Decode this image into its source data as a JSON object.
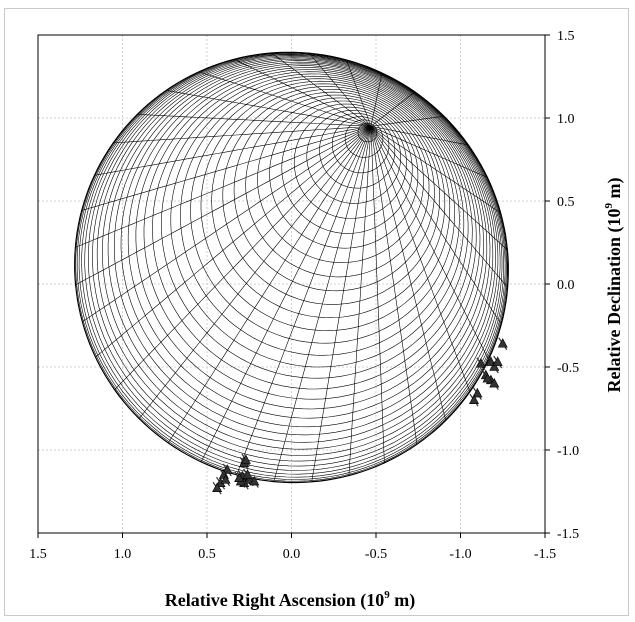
{
  "chart_data": {
    "type": "scatter",
    "title": "",
    "xlabel_parts": [
      "Relative Right Ascension (10",
      "9",
      " m)"
    ],
    "ylabel_parts": [
      "Relative Declination (10",
      "9",
      " m)"
    ],
    "xlim": [
      1.5,
      -1.5
    ],
    "ylim": [
      -1.5,
      1.5
    ],
    "x_ticks": [
      "1.5",
      "1.0",
      "0.5",
      "0.0",
      "-0.5",
      "-1.0",
      "-1.5"
    ],
    "y_ticks": [
      "1.5",
      "1.0",
      "0.5",
      "0.0",
      "-0.5",
      "-1.0",
      "-1.5"
    ],
    "x_tick_values": [
      1.5,
      1.0,
      0.5,
      0.0,
      -0.5,
      -1.0,
      -1.5
    ],
    "y_tick_values": [
      1.5,
      1.0,
      0.5,
      0.0,
      -0.5,
      -1.0,
      -1.5
    ],
    "grid": true,
    "legend": "none",
    "surface": {
      "description_free": true,
      "center": [
        0.0,
        0.1
      ],
      "semi_axes": [
        1.28,
        1.3
      ],
      "tilt_deg": -25,
      "pole": [
        -0.47,
        0.95
      ],
      "meridian_count": 36,
      "parallel_count": 36
    },
    "series": [
      {
        "marker": "triangle",
        "points": [
          {
            "x": 0.27,
            "y": -1.17
          },
          {
            "x": 0.25,
            "y": -1.18
          },
          {
            "x": 0.29,
            "y": -1.16
          },
          {
            "x": 0.26,
            "y": -1.15
          },
          {
            "x": 0.28,
            "y": -1.2
          },
          {
            "x": 0.3,
            "y": -1.19
          },
          {
            "x": 0.31,
            "y": -1.17
          },
          {
            "x": 0.28,
            "y": -1.08
          },
          {
            "x": 0.27,
            "y": -1.06
          },
          {
            "x": 0.22,
            "y": -1.19
          },
          {
            "x": 0.38,
            "y": -1.12
          },
          {
            "x": 0.4,
            "y": -1.15
          },
          {
            "x": 0.42,
            "y": -1.2
          },
          {
            "x": 0.44,
            "y": -1.23
          },
          {
            "x": 0.39,
            "y": -1.18
          },
          {
            "x": -1.12,
            "y": -0.48
          },
          {
            "x": -1.18,
            "y": -0.47
          },
          {
            "x": -1.2,
            "y": -0.5
          },
          {
            "x": -1.15,
            "y": -0.55
          },
          {
            "x": -1.18,
            "y": -0.58
          },
          {
            "x": -1.2,
            "y": -0.6
          },
          {
            "x": -1.16,
            "y": -0.57
          },
          {
            "x": -1.1,
            "y": -0.66
          },
          {
            "x": -1.08,
            "y": -0.7
          },
          {
            "x": -1.25,
            "y": -0.36
          },
          {
            "x": -1.22,
            "y": -0.47
          }
        ]
      }
    ],
    "colors": {
      "line": "#000000",
      "grid": "#d0d0d0",
      "marker": "#333333"
    }
  }
}
